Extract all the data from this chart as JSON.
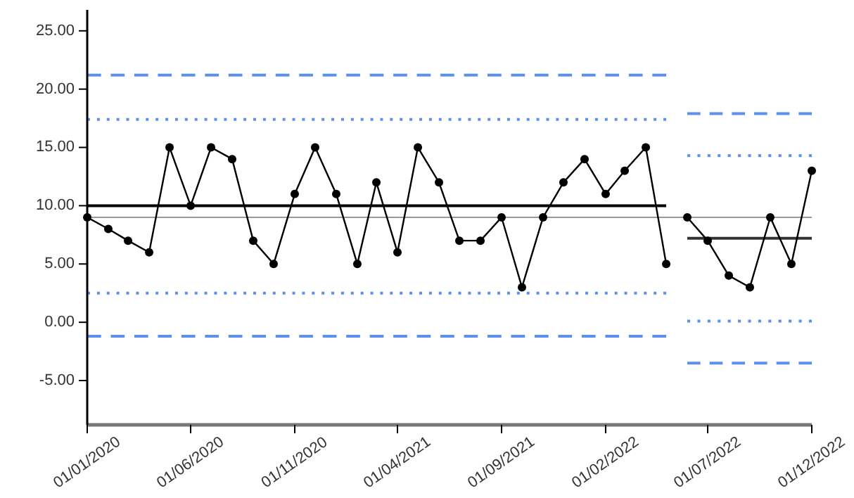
{
  "chart_data": {
    "type": "line",
    "xlim": [
      "2020-01-01",
      "2022-12-01"
    ],
    "xticks": [
      {
        "value": "2020-01-01",
        "label": "01/01/2020"
      },
      {
        "value": "2020-06-01",
        "label": "01/06/2020"
      },
      {
        "value": "2020-11-01",
        "label": "01/11/2020"
      },
      {
        "value": "2021-04-01",
        "label": "01/04/2021"
      },
      {
        "value": "2021-09-01",
        "label": "01/09/2021"
      },
      {
        "value": "2022-02-01",
        "label": "01/02/2022"
      },
      {
        "value": "2022-07-01",
        "label": "01/07/2022"
      },
      {
        "value": "2022-12-01",
        "label": "01/12/2022"
      }
    ],
    "ylim": [
      -8.8,
      26.8
    ],
    "yticks": [
      {
        "value": -5,
        "label": "-5.00"
      },
      {
        "value": 0,
        "label": "0.00"
      },
      {
        "value": 5,
        "label": "5.00"
      },
      {
        "value": 10,
        "label": "10.00"
      },
      {
        "value": 15,
        "label": "15.00"
      },
      {
        "value": 20,
        "label": "20.00"
      },
      {
        "value": 25,
        "label": "25.00"
      }
    ],
    "grid": false,
    "ref_lines": [
      {
        "axis": "y",
        "value": 9,
        "color": "#999999",
        "line_style": "solid"
      }
    ],
    "series": [
      {
        "color": "#5b8ff0",
        "line_style": "dashed",
        "marker": "none",
        "x": [
          "2020-01",
          "2022-05"
        ],
        "values": [
          21.2,
          21.2
        ]
      },
      {
        "color": "#5b8ff0",
        "line_style": "dotted",
        "marker": "none",
        "x": [
          "2020-01",
          "2022-05"
        ],
        "values": [
          17.4,
          17.4
        ]
      },
      {
        "color": "#5b8ff0",
        "line_style": "dotted",
        "marker": "none",
        "x": [
          "2020-01",
          "2022-05"
        ],
        "values": [
          2.5,
          2.5
        ]
      },
      {
        "color": "#5b8ff0",
        "line_style": "dashed",
        "marker": "none",
        "x": [
          "2020-01",
          "2022-05"
        ],
        "values": [
          -1.2,
          -1.2
        ]
      },
      {
        "color": "#000000",
        "line_style": "solid",
        "marker": "none",
        "x": [
          "2020-01",
          "2022-05"
        ],
        "values": [
          10,
          10
        ]
      },
      {
        "color": "#5b8ff0",
        "line_style": "dashed",
        "marker": "none",
        "x": [
          "2022-06",
          "2022-12"
        ],
        "values": [
          17.9,
          17.9
        ]
      },
      {
        "color": "#5b8ff0",
        "line_style": "dotted",
        "marker": "none",
        "x": [
          "2022-06",
          "2022-12"
        ],
        "values": [
          14.3,
          14.3
        ]
      },
      {
        "color": "#5b8ff0",
        "line_style": "dotted",
        "marker": "none",
        "x": [
          "2022-06",
          "2022-12"
        ],
        "values": [
          0.1,
          0.1
        ]
      },
      {
        "color": "#5b8ff0",
        "line_style": "dashed",
        "marker": "none",
        "x": [
          "2022-06",
          "2022-12"
        ],
        "values": [
          -3.5,
          -3.5
        ]
      },
      {
        "color": "#333333",
        "line_style": "solid",
        "marker": "none",
        "x": [
          "2022-06",
          "2022-12"
        ],
        "values": [
          7.2,
          7.2
        ]
      },
      {
        "color": "#000000",
        "line_style": "solid",
        "marker": "circle",
        "x": [
          "2020-01",
          "2020-02",
          "2020-03",
          "2020-04",
          "2020-05",
          "2020-06",
          "2020-07",
          "2020-08",
          "2020-09",
          "2020-10",
          "2020-11",
          "2020-12",
          "2021-01",
          "2021-02",
          "2021-03",
          "2021-04",
          "2021-05",
          "2021-06",
          "2021-07",
          "2021-08",
          "2021-09",
          "2021-10",
          "2021-11",
          "2021-12",
          "2022-01",
          "2022-02",
          "2022-03",
          "2022-04",
          "2022-05"
        ],
        "values": [
          9,
          8,
          7,
          6,
          15,
          10,
          15,
          14,
          7,
          5,
          11,
          15,
          11,
          5,
          12,
          6,
          15,
          12,
          7,
          7,
          9,
          3,
          9,
          12,
          14,
          11,
          13,
          15,
          5
        ]
      },
      {
        "color": "#000000",
        "line_style": "solid",
        "marker": "circle",
        "x": [
          "2022-06",
          "2022-07",
          "2022-08",
          "2022-09",
          "2022-10",
          "2022-11",
          "2022-12"
        ],
        "values": [
          9,
          7,
          4,
          3,
          9,
          5,
          13
        ]
      }
    ]
  }
}
